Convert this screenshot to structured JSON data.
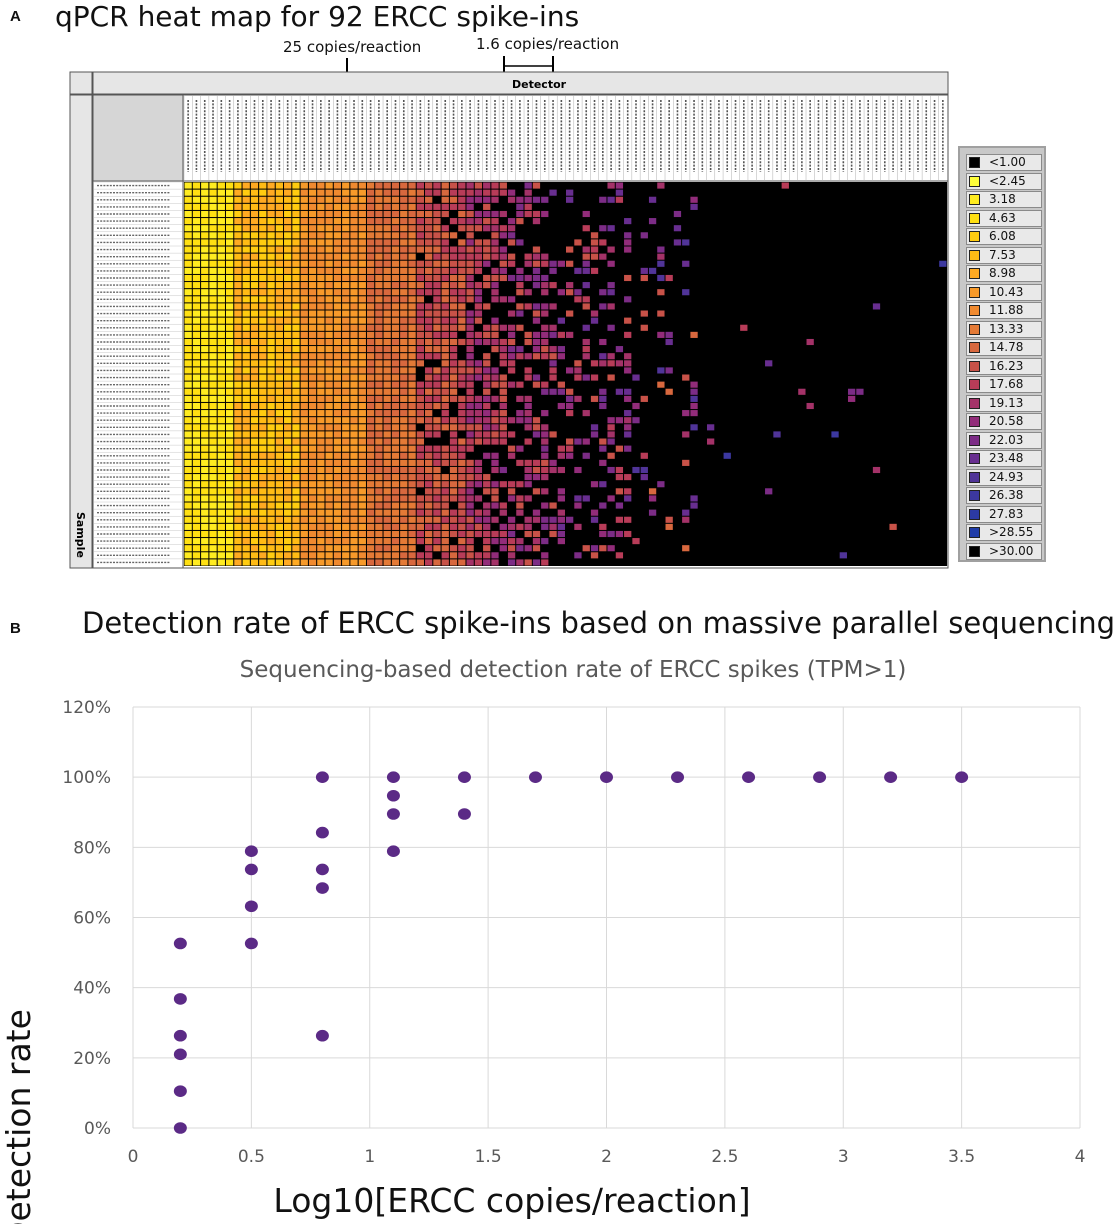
{
  "panel_a": {
    "letter": "A",
    "title": "qPCR heat map for 92 ERCC spike-ins",
    "annotation_25": "25 copies/reaction",
    "annotation_16": "1.6 copies/reaction",
    "detector_label": "Detector",
    "sample_label": "Sample",
    "legend": [
      {
        "label": "<1.00",
        "color": "#000000"
      },
      {
        "label": "<2.45",
        "color": "#ffff3a"
      },
      {
        "label": "3.18",
        "color": "#ffec20"
      },
      {
        "label": "4.63",
        "color": "#ffe012"
      },
      {
        "label": "6.08",
        "color": "#ffcc10"
      },
      {
        "label": "7.53",
        "color": "#ffbb15"
      },
      {
        "label": "8.98",
        "color": "#ffaa22"
      },
      {
        "label": "10.43",
        "color": "#f79a2a"
      },
      {
        "label": "11.88",
        "color": "#f08a30"
      },
      {
        "label": "13.33",
        "color": "#e47a36"
      },
      {
        "label": "14.78",
        "color": "#d8683e"
      },
      {
        "label": "16.23",
        "color": "#c85248"
      },
      {
        "label": "17.68",
        "color": "#b83c58"
      },
      {
        "label": "19.13",
        "color": "#a43268"
      },
      {
        "label": "20.58",
        "color": "#922c7a"
      },
      {
        "label": "22.03",
        "color": "#7c2c86"
      },
      {
        "label": "23.48",
        "color": "#682e90"
      },
      {
        "label": "24.93",
        "color": "#503498"
      },
      {
        "label": "26.38",
        "color": "#3c38a0"
      },
      {
        "label": "27.83",
        "color": "#2c3aa4"
      },
      {
        "label": ">28.55",
        "color": "#203ca8"
      },
      {
        "label": ">30.00",
        "color": "#000000"
      }
    ]
  },
  "panel_b": {
    "letter": "B",
    "title": "Detection rate of ERCC spike-ins based on massive parallel sequencing"
  },
  "chart_data": {
    "type": "scatter",
    "title": "Sequencing-based detection rate of ERCC spikes (TPM>1)",
    "xlabel": "Log10[ERCC copies/reaction]",
    "ylabel": "Detection rate",
    "xlim": [
      0,
      4
    ],
    "ylim": [
      0,
      120
    ],
    "x_ticks": [
      "0",
      "0.5",
      "1",
      "1.5",
      "2",
      "2.5",
      "3",
      "3.5",
      "4"
    ],
    "y_ticks": [
      "0%",
      "20%",
      "40%",
      "60%",
      "80%",
      "100%",
      "120%"
    ],
    "grid": true,
    "marker_color": "#5b2a86",
    "points": [
      {
        "x": 0.2,
        "y": 0
      },
      {
        "x": 0.2,
        "y": 10.5
      },
      {
        "x": 0.2,
        "y": 21
      },
      {
        "x": 0.2,
        "y": 26.3
      },
      {
        "x": 0.2,
        "y": 36.8
      },
      {
        "x": 0.2,
        "y": 52.6
      },
      {
        "x": 0.5,
        "y": 52.6
      },
      {
        "x": 0.5,
        "y": 63.2
      },
      {
        "x": 0.5,
        "y": 73.7
      },
      {
        "x": 0.5,
        "y": 78.9
      },
      {
        "x": 0.8,
        "y": 26.3
      },
      {
        "x": 0.8,
        "y": 68.4
      },
      {
        "x": 0.8,
        "y": 73.7
      },
      {
        "x": 0.8,
        "y": 84.2
      },
      {
        "x": 0.8,
        "y": 100
      },
      {
        "x": 1.1,
        "y": 78.9
      },
      {
        "x": 1.1,
        "y": 89.5
      },
      {
        "x": 1.1,
        "y": 94.7
      },
      {
        "x": 1.1,
        "y": 100
      },
      {
        "x": 1.4,
        "y": 89.5
      },
      {
        "x": 1.4,
        "y": 100
      },
      {
        "x": 1.7,
        "y": 100
      },
      {
        "x": 2.0,
        "y": 100
      },
      {
        "x": 2.3,
        "y": 100
      },
      {
        "x": 2.6,
        "y": 100
      },
      {
        "x": 2.9,
        "y": 100
      },
      {
        "x": 3.2,
        "y": 100
      },
      {
        "x": 3.5,
        "y": 100
      }
    ]
  }
}
